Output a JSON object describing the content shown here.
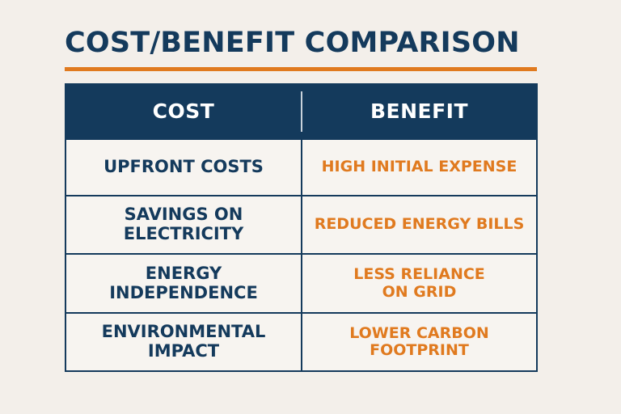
{
  "title": "COST/BENEFIT COMPARISON",
  "colors": {
    "navy": "#143a5c",
    "orange": "#e07a1f",
    "background": "#f3efea"
  },
  "table": {
    "headers": {
      "cost": "COST",
      "benefit": "BENEFIT"
    },
    "rows": [
      {
        "cost": "UPFRONT COSTS",
        "benefit": "HIGH INITIAL EXPENSE"
      },
      {
        "cost": "SAVINGS ON\nELECTRICITY",
        "benefit": "REDUCED ENERGY BILLS"
      },
      {
        "cost": "ENERGY\nINDEPENDENCE",
        "benefit": "LESS RELIANCE\nON GRID"
      },
      {
        "cost": "ENVIRONMENTAL\nIMPACT",
        "benefit": "LOWER CARBON\nFOOTPRINT"
      }
    ]
  }
}
